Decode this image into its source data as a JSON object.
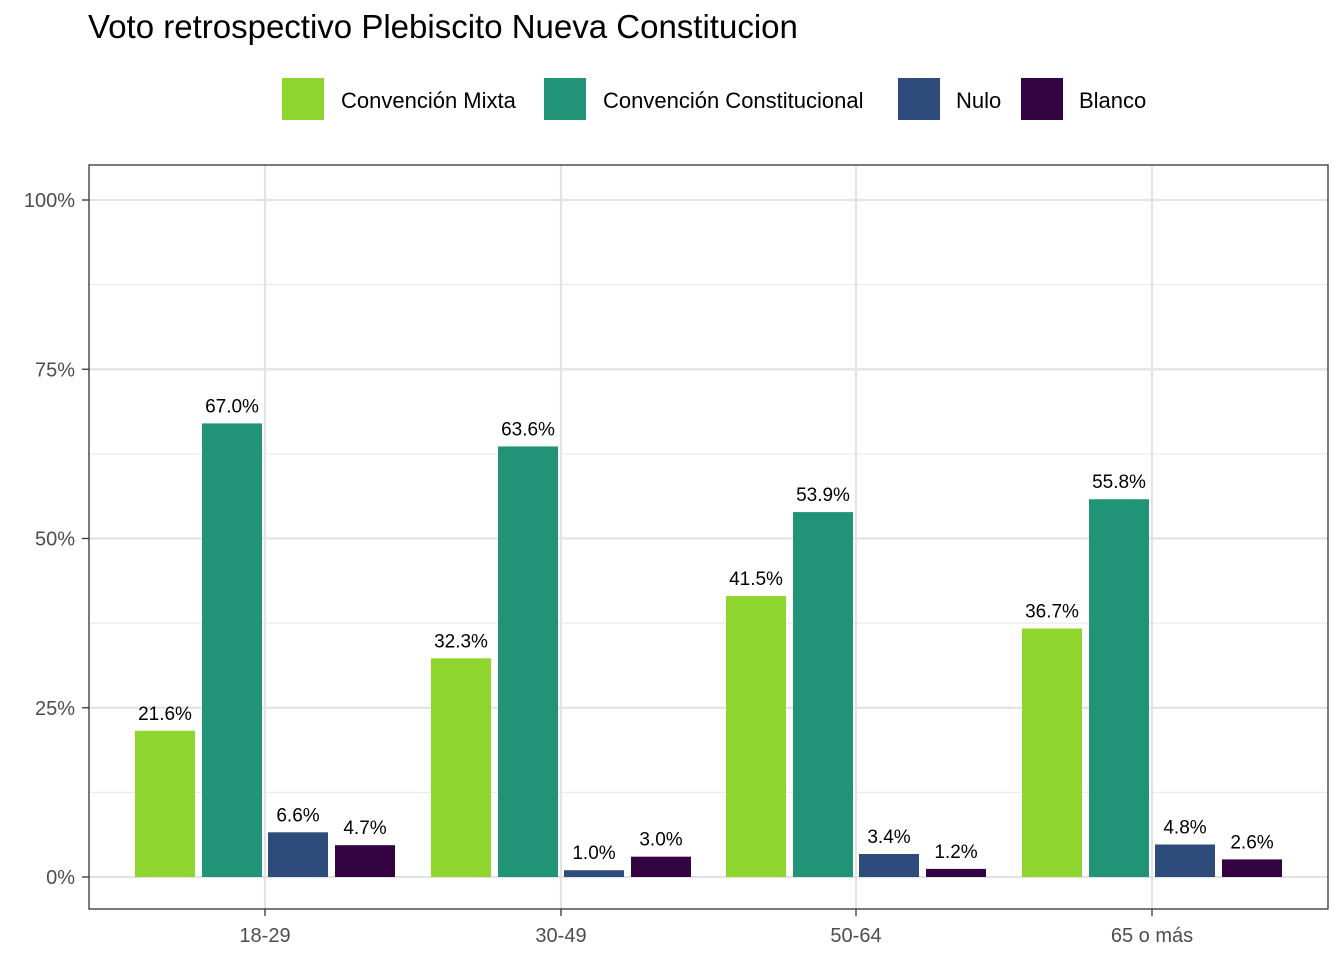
{
  "chart_data": {
    "type": "bar",
    "title": "Voto retrospectivo Plebiscito Nueva Constitucion",
    "xlabel": "",
    "ylabel": "",
    "ylim": [
      0,
      1.0
    ],
    "yticks": [
      0,
      0.25,
      0.5,
      0.75,
      1.0
    ],
    "ytick_labels": [
      "0%",
      "25%",
      "50%",
      "75%",
      "100%"
    ],
    "categories": [
      "18-29",
      "30-49",
      "50-64",
      "65 o más"
    ],
    "legend_position": "top",
    "grid": true,
    "series": [
      {
        "name": "Convención Mixta",
        "color": "#8ED52E",
        "values": [
          0.216,
          0.323,
          0.415,
          0.367
        ],
        "labels": [
          "21.6%",
          "32.3%",
          "41.5%",
          "36.7%"
        ]
      },
      {
        "name": "Convención Constitucional",
        "color": "#219477",
        "values": [
          0.67,
          0.636,
          0.539,
          0.558
        ],
        "labels": [
          "67.0%",
          "63.6%",
          "53.9%",
          "55.8%"
        ]
      },
      {
        "name": "Nulo",
        "color": "#2D4B7B",
        "values": [
          0.066,
          0.01,
          0.034,
          0.048
        ],
        "labels": [
          "6.6%",
          "1.0%",
          "3.4%",
          "4.8%"
        ]
      },
      {
        "name": "Blanco",
        "color": "#330342",
        "values": [
          0.047,
          0.03,
          0.012,
          0.026
        ],
        "labels": [
          "4.7%",
          "3.0%",
          "1.2%",
          "2.6%"
        ]
      }
    ]
  }
}
